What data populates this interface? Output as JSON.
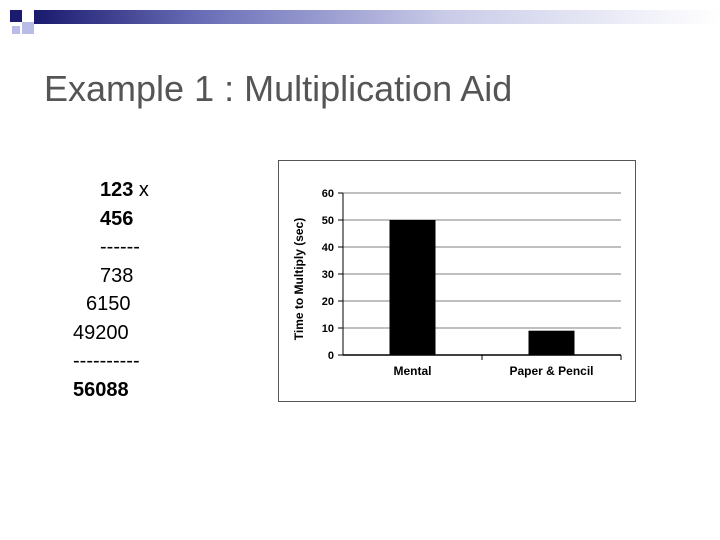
{
  "slide": {
    "title": "Example 1 : Multiplication Aid",
    "calculation": {
      "line1_number": "123",
      "line1_op": " x",
      "line2": "456",
      "rule1": "------",
      "partial1": "738",
      "partial2": "6150",
      "partial3": "49200",
      "rule2": "----------",
      "result": "56088"
    }
  },
  "colors": {
    "accent_dark": "#1a1a6e",
    "accent_light": "#b8bce6",
    "bar": "#000000"
  },
  "chart_data": {
    "type": "bar",
    "categories": [
      "Mental",
      "Paper & Pencil"
    ],
    "values": [
      50,
      9
    ],
    "ylabel": "Time to Multiply (sec)",
    "xlabel": "",
    "ylim": [
      0,
      60
    ],
    "yticks": [
      0,
      10,
      20,
      30,
      40,
      50,
      60
    ],
    "grid": true
  }
}
